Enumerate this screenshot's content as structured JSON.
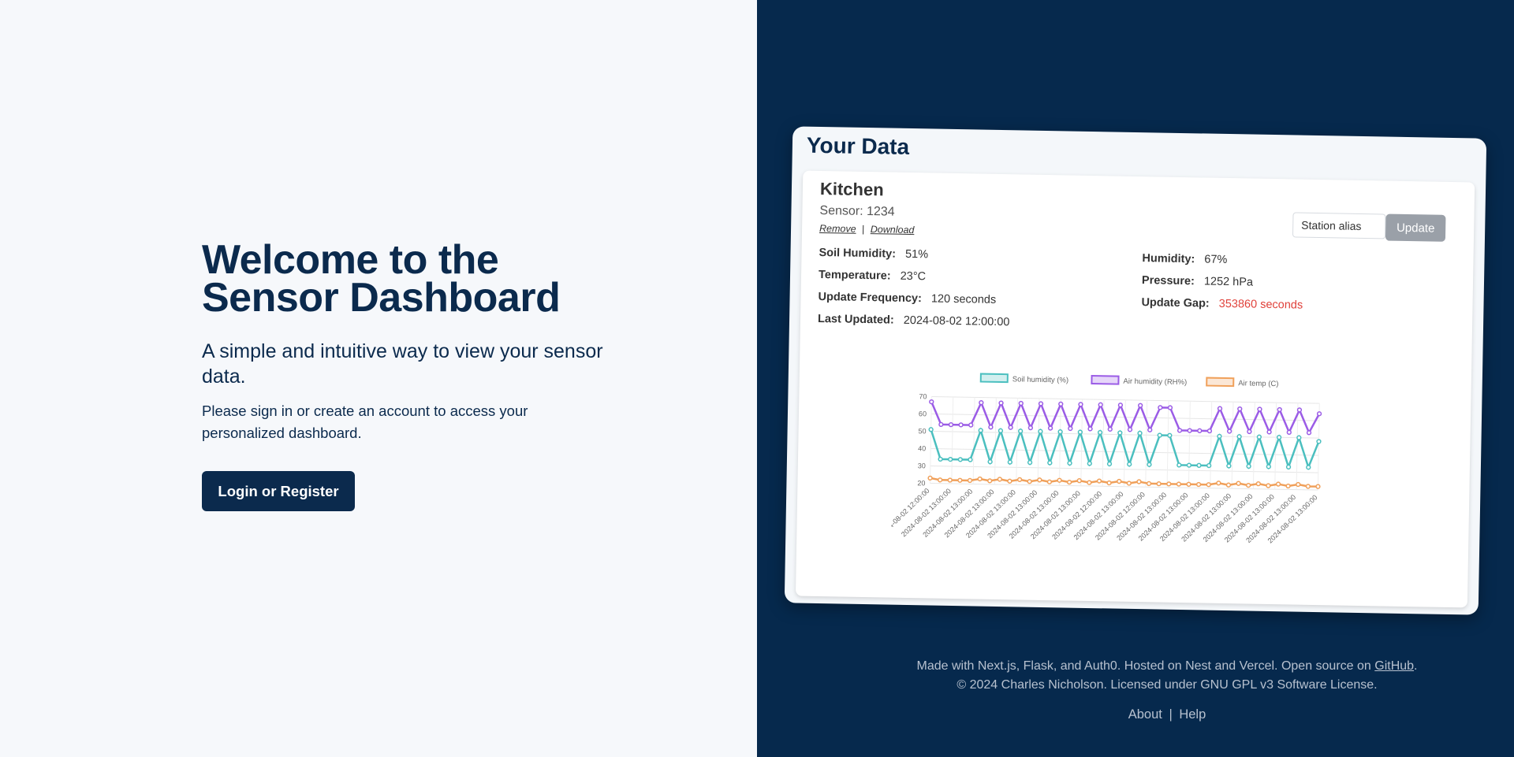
{
  "hero": {
    "title_line1": "Welcome to the",
    "title_line2": "Sensor Dashboard",
    "subtitle": "A simple and intuitive way to view your sensor data.",
    "note": "Please sign in or create an account to access your personalized dashboard.",
    "login_label": "Login or Register"
  },
  "preview": {
    "title": "Your Data",
    "station": {
      "name": "Kitchen",
      "sensor": "Sensor: 1234",
      "remove_label": "Remove",
      "separator": "|",
      "download_label": "Download",
      "alias_placeholder": "Station alias",
      "update_label": "Update"
    },
    "fields": {
      "soil_humidity": {
        "label": "Soil Humidity:",
        "value": "51%"
      },
      "temperature": {
        "label": "Temperature:",
        "value": "23°C"
      },
      "update_frequency": {
        "label": "Update Frequency:",
        "value": "120 seconds"
      },
      "last_updated": {
        "label": "Last Updated:",
        "value": "2024-08-02 12:00:00"
      },
      "humidity": {
        "label": "Humidity:",
        "value": "67%"
      },
      "pressure": {
        "label": "Pressure:",
        "value": "1252 hPa"
      },
      "update_gap": {
        "label": "Update Gap:",
        "value": "353860 seconds"
      }
    },
    "colors": {
      "gap_warning": "#e0413a"
    }
  },
  "chart_data": {
    "type": "line",
    "title": "",
    "xlabel": "",
    "ylabel": "",
    "ylim": [
      20,
      70
    ],
    "yticks": [
      20,
      30,
      40,
      50,
      60,
      70
    ],
    "grid": true,
    "legend": "top",
    "x": [
      "2024-08-02 12:00:00",
      "2024-08-02 13:00:00",
      "2024-08-02 13:00:00",
      "2024-08-02 13:00:00",
      "2024-08-02 13:00:00",
      "2024-08-02 13:00:00",
      "2024-08-02 13:00:00",
      "2024-08-02 13:00:00",
      "2024-08-02 13:00:00",
      "2024-08-02 13:00:00",
      "2024-08-02 13:00:00",
      "2024-08-02 13:00:00",
      "2024-08-02 13:00:00",
      "2024-08-02 13:00:00",
      "2024-08-02 13:00:00",
      "2024-08-02 13:00:00",
      "2024-08-02 13:00:00",
      "2024-08-02 13:00:00",
      "2024-08-02 13:00:00",
      "2024-08-02 13:00:00",
      "2024-08-02 13:00:00",
      "2024-08-02 13:00:00",
      "2024-08-02 13:00:00",
      "2024-08-02 13:00:00",
      "2024-08-02 13:00:00",
      "2024-08-02 13:00:00",
      "2024-08-02 13:00:00",
      "2024-08-02 13:00:00",
      "2024-08-02 13:00:00",
      "2024-08-02 13:00:00",
      "2024-08-02 13:00:00",
      "2024-08-02 13:00:00",
      "2024-08-02 13:00:00",
      "2024-08-02 13:00:00",
      "2024-08-02 13:00:00",
      "2024-08-02 13:00:00",
      "2024-08-02 13:00:00",
      "2024-08-02 13:00:00",
      "2024-08-02 13:00:00",
      "2024-08-02 13:00:00"
    ],
    "tick_labels": [
      "2024-08-02 12:00:00",
      "2024-08-02 13:00:00",
      "2024-08-02 13:00:00",
      "2024-08-02 13:00:00",
      "2024-08-02 13:00:00",
      "2024-08-02 13:00:00",
      "2024-08-02 13:00:00",
      "2024-08-02 13:00:00",
      "2024-08-02 12:00:00",
      "2024-08-02 13:00:00",
      "2024-08-02 12:00:00",
      "2024-08-02 13:00:00",
      "2024-08-02 13:00:00",
      "2024-08-02 13:00:00",
      "2024-08-02 13:00:00",
      "2024-08-02 13:00:00",
      "2024-08-02 13:00:00",
      "2024-08-02 13:00:00",
      "2024-08-02 13:00:00"
    ],
    "series": [
      {
        "name": "Soil humidity (%)",
        "color": "#4bbfbf",
        "values": [
          51,
          34,
          34,
          34,
          34,
          51,
          33,
          51,
          33,
          51,
          33,
          51,
          33,
          51,
          33,
          51,
          33,
          51,
          33,
          51,
          33,
          51,
          33,
          50,
          50,
          33,
          33,
          33,
          33,
          50,
          33,
          50,
          33,
          50,
          33,
          50,
          33,
          50,
          33,
          48
        ]
      },
      {
        "name": "Air humidity (RH%)",
        "color": "#9b5ce6",
        "values": [
          67,
          54,
          54,
          54,
          54,
          67,
          53,
          67,
          53,
          67,
          53,
          67,
          53,
          67,
          53,
          67,
          53,
          67,
          53,
          67,
          53,
          67,
          53,
          66,
          66,
          53,
          53,
          53,
          53,
          66,
          53,
          66,
          53,
          66,
          53,
          66,
          53,
          66,
          53,
          64
        ]
      },
      {
        "name": "Air temp (C)",
        "color": "#f0a05a",
        "values": [
          23,
          22,
          22,
          22,
          22,
          23,
          22,
          23,
          22,
          23,
          22,
          23,
          22,
          23,
          22,
          23,
          22,
          23,
          22,
          23,
          22,
          23,
          22,
          22,
          22,
          22,
          22,
          22,
          22,
          23,
          22,
          23,
          22,
          23,
          22,
          23,
          22,
          23,
          22,
          22
        ]
      }
    ]
  },
  "footer": {
    "line1_text": "Made with Next.js, Flask, and Auth0. Hosted on Nest and Vercel. Open source on",
    "github_label": "GitHub",
    "line1_end": ".",
    "line2": "© 2024 Charles Nicholson. Licensed under GNU GPL v3 Software License.",
    "about_label": "About",
    "nav_separator": "|",
    "help_label": "Help"
  }
}
